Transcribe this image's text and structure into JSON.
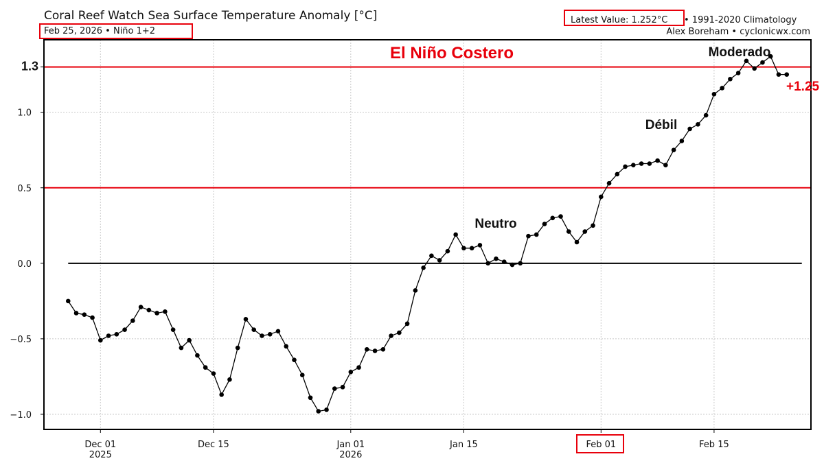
{
  "header": {
    "title": "Coral Reef Watch Sea Surface Temperature Anomaly [°C]",
    "subtitle": "Feb 25, 2026 • Niño 1+2",
    "latest_value": "Latest Value: 1.252°C",
    "climatology": "• 1991-2020 Climatology",
    "credit": "Alex Boreham • cyclonicwx.com"
  },
  "colors": {
    "threshold": "#e8000b",
    "series": "#000000",
    "zero_line": "#000000",
    "highlight_box": "#e8000b"
  },
  "chart_data": {
    "type": "line",
    "title": "Coral Reef Watch Sea Surface Temperature Anomaly [°C]",
    "xlabel": "",
    "ylabel": "",
    "grid": true,
    "ylim": [
      -1.1,
      1.48
    ],
    "xlim": [
      "2025-11-24",
      "2026-02-27"
    ],
    "x_ticks": [
      {
        "date": "2025-12-01",
        "label": "Dec 01",
        "sub": "2025"
      },
      {
        "date": "2025-12-15",
        "label": "Dec 15",
        "sub": ""
      },
      {
        "date": "2026-01-01",
        "label": "Jan 01",
        "sub": "2026"
      },
      {
        "date": "2026-01-15",
        "label": "Jan 15",
        "sub": ""
      },
      {
        "date": "2026-02-01",
        "label": "Feb 01",
        "sub": ""
      },
      {
        "date": "2026-02-15",
        "label": "Feb 15",
        "sub": ""
      }
    ],
    "y_ticks": [
      {
        "value": -1.0,
        "label": "−1.0"
      },
      {
        "value": -0.5,
        "label": "−0.5"
      },
      {
        "value": 0.0,
        "label": "0.0"
      },
      {
        "value": 0.5,
        "label": "0.5"
      },
      {
        "value": 1.0,
        "label": "1.0"
      },
      {
        "value": 1.3,
        "label": "1.3"
      }
    ],
    "thresholds": [
      0.5,
      1.3
    ],
    "zero_line": 0.0,
    "annotations": [
      {
        "text": "El Niño Costero",
        "style": "red"
      },
      {
        "text": "Neutro",
        "style": "black"
      },
      {
        "text": "Débil",
        "style": "black"
      },
      {
        "text": "Moderado",
        "style": "black"
      }
    ],
    "last_value_label": "+1.25",
    "series": [
      {
        "start_date": "2025-11-27",
        "step_days": 1,
        "values": [
          -0.25,
          -0.33,
          -0.34,
          -0.36,
          -0.51,
          -0.48,
          -0.47,
          -0.44,
          -0.38,
          -0.29,
          -0.31,
          -0.33,
          -0.32,
          -0.44,
          -0.56,
          -0.51,
          -0.61,
          -0.69,
          -0.73,
          -0.87,
          -0.77,
          -0.56,
          -0.37,
          -0.44,
          -0.48,
          -0.47,
          -0.45,
          -0.55,
          -0.64,
          -0.74,
          -0.89,
          -0.98,
          -0.97,
          -0.83,
          -0.82,
          -0.72,
          -0.69,
          -0.57,
          -0.58,
          -0.57,
          -0.48,
          -0.46,
          -0.4,
          -0.18,
          -0.03,
          0.05,
          0.02,
          0.08,
          0.19,
          0.1,
          0.1,
          0.12,
          0.0,
          0.03,
          0.01,
          -0.01,
          0.0,
          0.18,
          0.19,
          0.26,
          0.3,
          0.31,
          0.21,
          0.14,
          0.21,
          0.25,
          0.44,
          0.53,
          0.59,
          0.64,
          0.65,
          0.66,
          0.66,
          0.68,
          0.65,
          0.75,
          0.81,
          0.89,
          0.92,
          0.98,
          1.12,
          1.16,
          1.22,
          1.26,
          1.34,
          1.29,
          1.33,
          1.37,
          1.25,
          1.25
        ]
      }
    ]
  }
}
